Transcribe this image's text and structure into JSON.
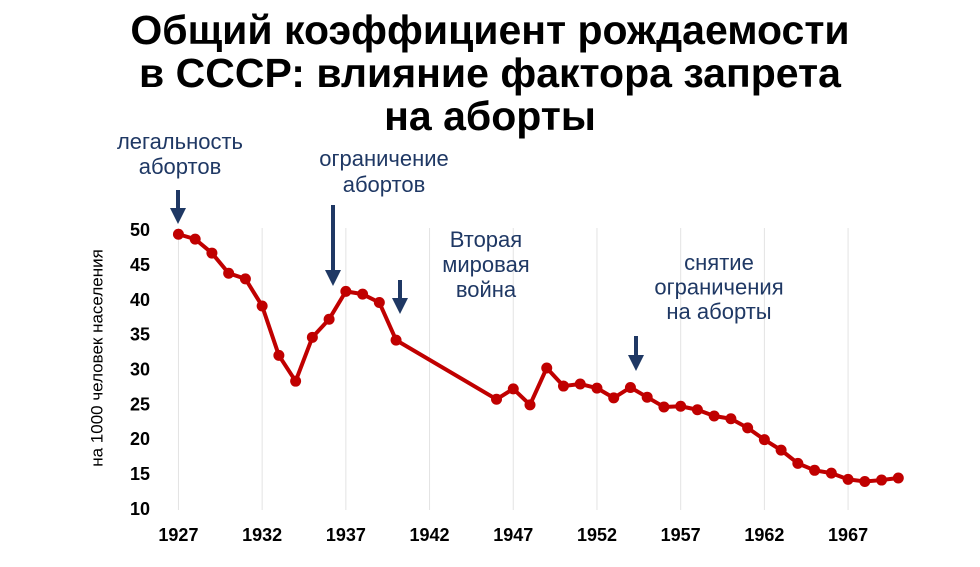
{
  "chart_data": {
    "type": "line",
    "title": [
      "Общий коэффициент рождаемости",
      "в СССР: влияние фактора запрета",
      "на аборты"
    ],
    "y_label": "на 1000 человек населения",
    "x": [
      1927,
      1928,
      1929,
      1930,
      1931,
      1932,
      1933,
      1934,
      1935,
      1936,
      1937,
      1938,
      1939,
      1940,
      1946,
      1947,
      1948,
      1949,
      1950,
      1951,
      1952,
      1953,
      1954,
      1955,
      1956,
      1957,
      1958,
      1959,
      1960,
      1961,
      1962,
      1963,
      1964,
      1965,
      1966,
      1967,
      1968,
      1969,
      1970
    ],
    "series": [
      {
        "color": "#c00000",
        "values": [
          49.6,
          48.9,
          46.9,
          44.0,
          43.2,
          39.3,
          32.2,
          28.5,
          34.8,
          37.4,
          41.4,
          41.0,
          39.8,
          34.4,
          25.9,
          27.4,
          25.1,
          30.4,
          27.8,
          28.1,
          27.5,
          26.1,
          27.6,
          26.2,
          24.8,
          24.9,
          24.4,
          23.5,
          23.1,
          21.8,
          20.1,
          18.6,
          16.7,
          15.7,
          15.3,
          14.4,
          14.1,
          14.3,
          14.6
        ]
      }
    ],
    "xlim": [
      1925.6,
      1970.4
    ],
    "ylim": [
      10,
      50.5
    ],
    "xticks": [
      1927,
      1932,
      1937,
      1942,
      1947,
      1952,
      1957,
      1962,
      1967
    ],
    "yticks": [
      10,
      15,
      20,
      25,
      30,
      35,
      40,
      45,
      50
    ],
    "grid": true,
    "annotations": [
      {
        "lines": [
          "легальность",
          "абортов"
        ]
      },
      {
        "lines": [
          "ограничение",
          "абортов"
        ]
      },
      {
        "lines": [
          "Вторая",
          "мировая",
          "война"
        ]
      },
      {
        "lines": [
          "снятие",
          "ограничения",
          "на аборты"
        ]
      }
    ]
  }
}
